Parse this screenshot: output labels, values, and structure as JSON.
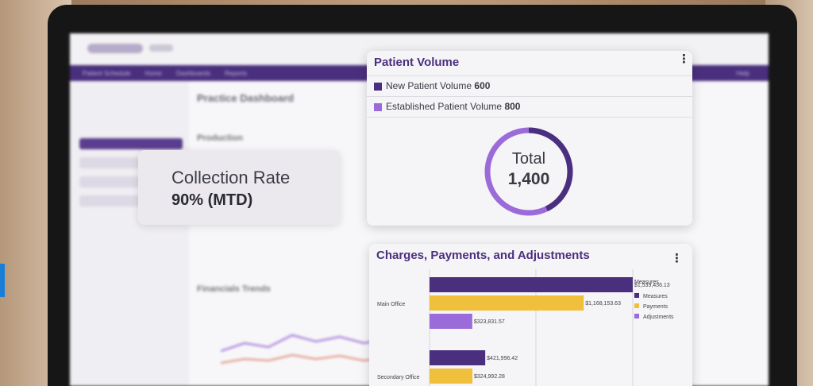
{
  "background_app": {
    "nav_items": [
      "Patient Schedule",
      "Home",
      "Dashboards",
      "Reports",
      "Help"
    ],
    "page_title": "Practice Dashboard",
    "section_production": "Production",
    "section_trends": "Financials Trends"
  },
  "collection_card": {
    "label": "Collection Rate",
    "value": "90% (MTD)"
  },
  "patient_volume": {
    "title": "Patient Volume",
    "legend": [
      {
        "label": "New Patient Volume",
        "value": "600",
        "color": "#4a2f7e"
      },
      {
        "label": "Established Patient Volume",
        "value": "800",
        "color": "#9b6bd9"
      }
    ],
    "donut_label": "Total",
    "donut_total": "1,400",
    "colors": {
      "new": "#4a2f7e",
      "established": "#9b6bd9",
      "border": "#dedce3"
    }
  },
  "charges_card": {
    "title": "Charges, Payments, and Adjustments",
    "legend_title": "Measures",
    "legend": [
      {
        "label": "Measures",
        "color": "#4a2f7e"
      },
      {
        "label": "Payments",
        "color": "#f0bf3c"
      },
      {
        "label": "Adjustments",
        "color": "#9b6bd9"
      }
    ]
  },
  "chart_data": {
    "type": "bar",
    "categories": [
      "Main Office",
      "Secondary Office"
    ],
    "series": [
      {
        "name": "Measures",
        "values": [
          1539436.13,
          421996.42
        ],
        "labels": [
          "$1,539,436.13",
          "$421,996.42"
        ]
      },
      {
        "name": "Payments",
        "values": [
          1168153.63,
          324992.28
        ],
        "labels": [
          "$1,168,153.63",
          "$324,992.28"
        ]
      },
      {
        "name": "Adjustments",
        "values": [
          323831.57,
          null
        ],
        "labels": [
          "$323,831.57",
          ""
        ]
      }
    ],
    "xlim": [
      0,
      2000000
    ],
    "orientation": "horizontal",
    "grid": true,
    "legend": "right"
  }
}
